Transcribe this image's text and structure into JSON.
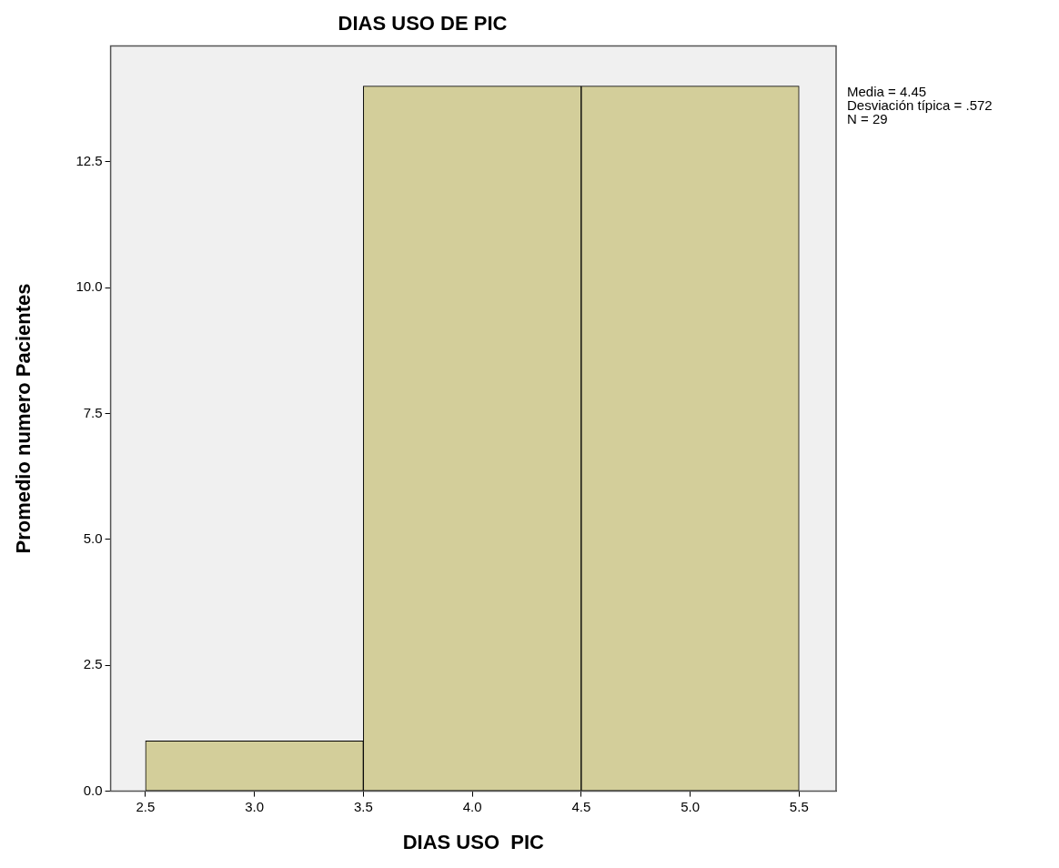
{
  "chart_data": {
    "type": "histogram",
    "title": "DIAS USO DE PIC",
    "xlabel": "DIAS USO  PIC",
    "ylabel": "Promedio numero Pacientes",
    "bins": [
      2.5,
      3.5,
      4.5,
      5.5
    ],
    "values": [
      1,
      14,
      14
    ],
    "color": "#d3ce9a",
    "xlim": [
      2.34,
      5.67
    ],
    "xticks": [
      2.5,
      {
        "value": 3,
        "label": "3.0"
      },
      {
        "value": 3.5,
        "label": "3.5"
      },
      {
        "value": 4,
        "label": "4.0"
      },
      4.5,
      {
        "value": 5,
        "label": "5.0"
      },
      5.5
    ],
    "ylim": [
      0,
      14.8
    ],
    "yticks": [
      {
        "value": 0,
        "label": "0.0"
      },
      2.5,
      {
        "value": 5,
        "label": "5.0"
      },
      7.5,
      {
        "value": 10,
        "label": "10.0"
      },
      12.5
    ],
    "annotations": [
      "Media = 4.45",
      "Desviación típica = .572",
      "N = 29"
    ],
    "grid": false,
    "legend": false
  }
}
